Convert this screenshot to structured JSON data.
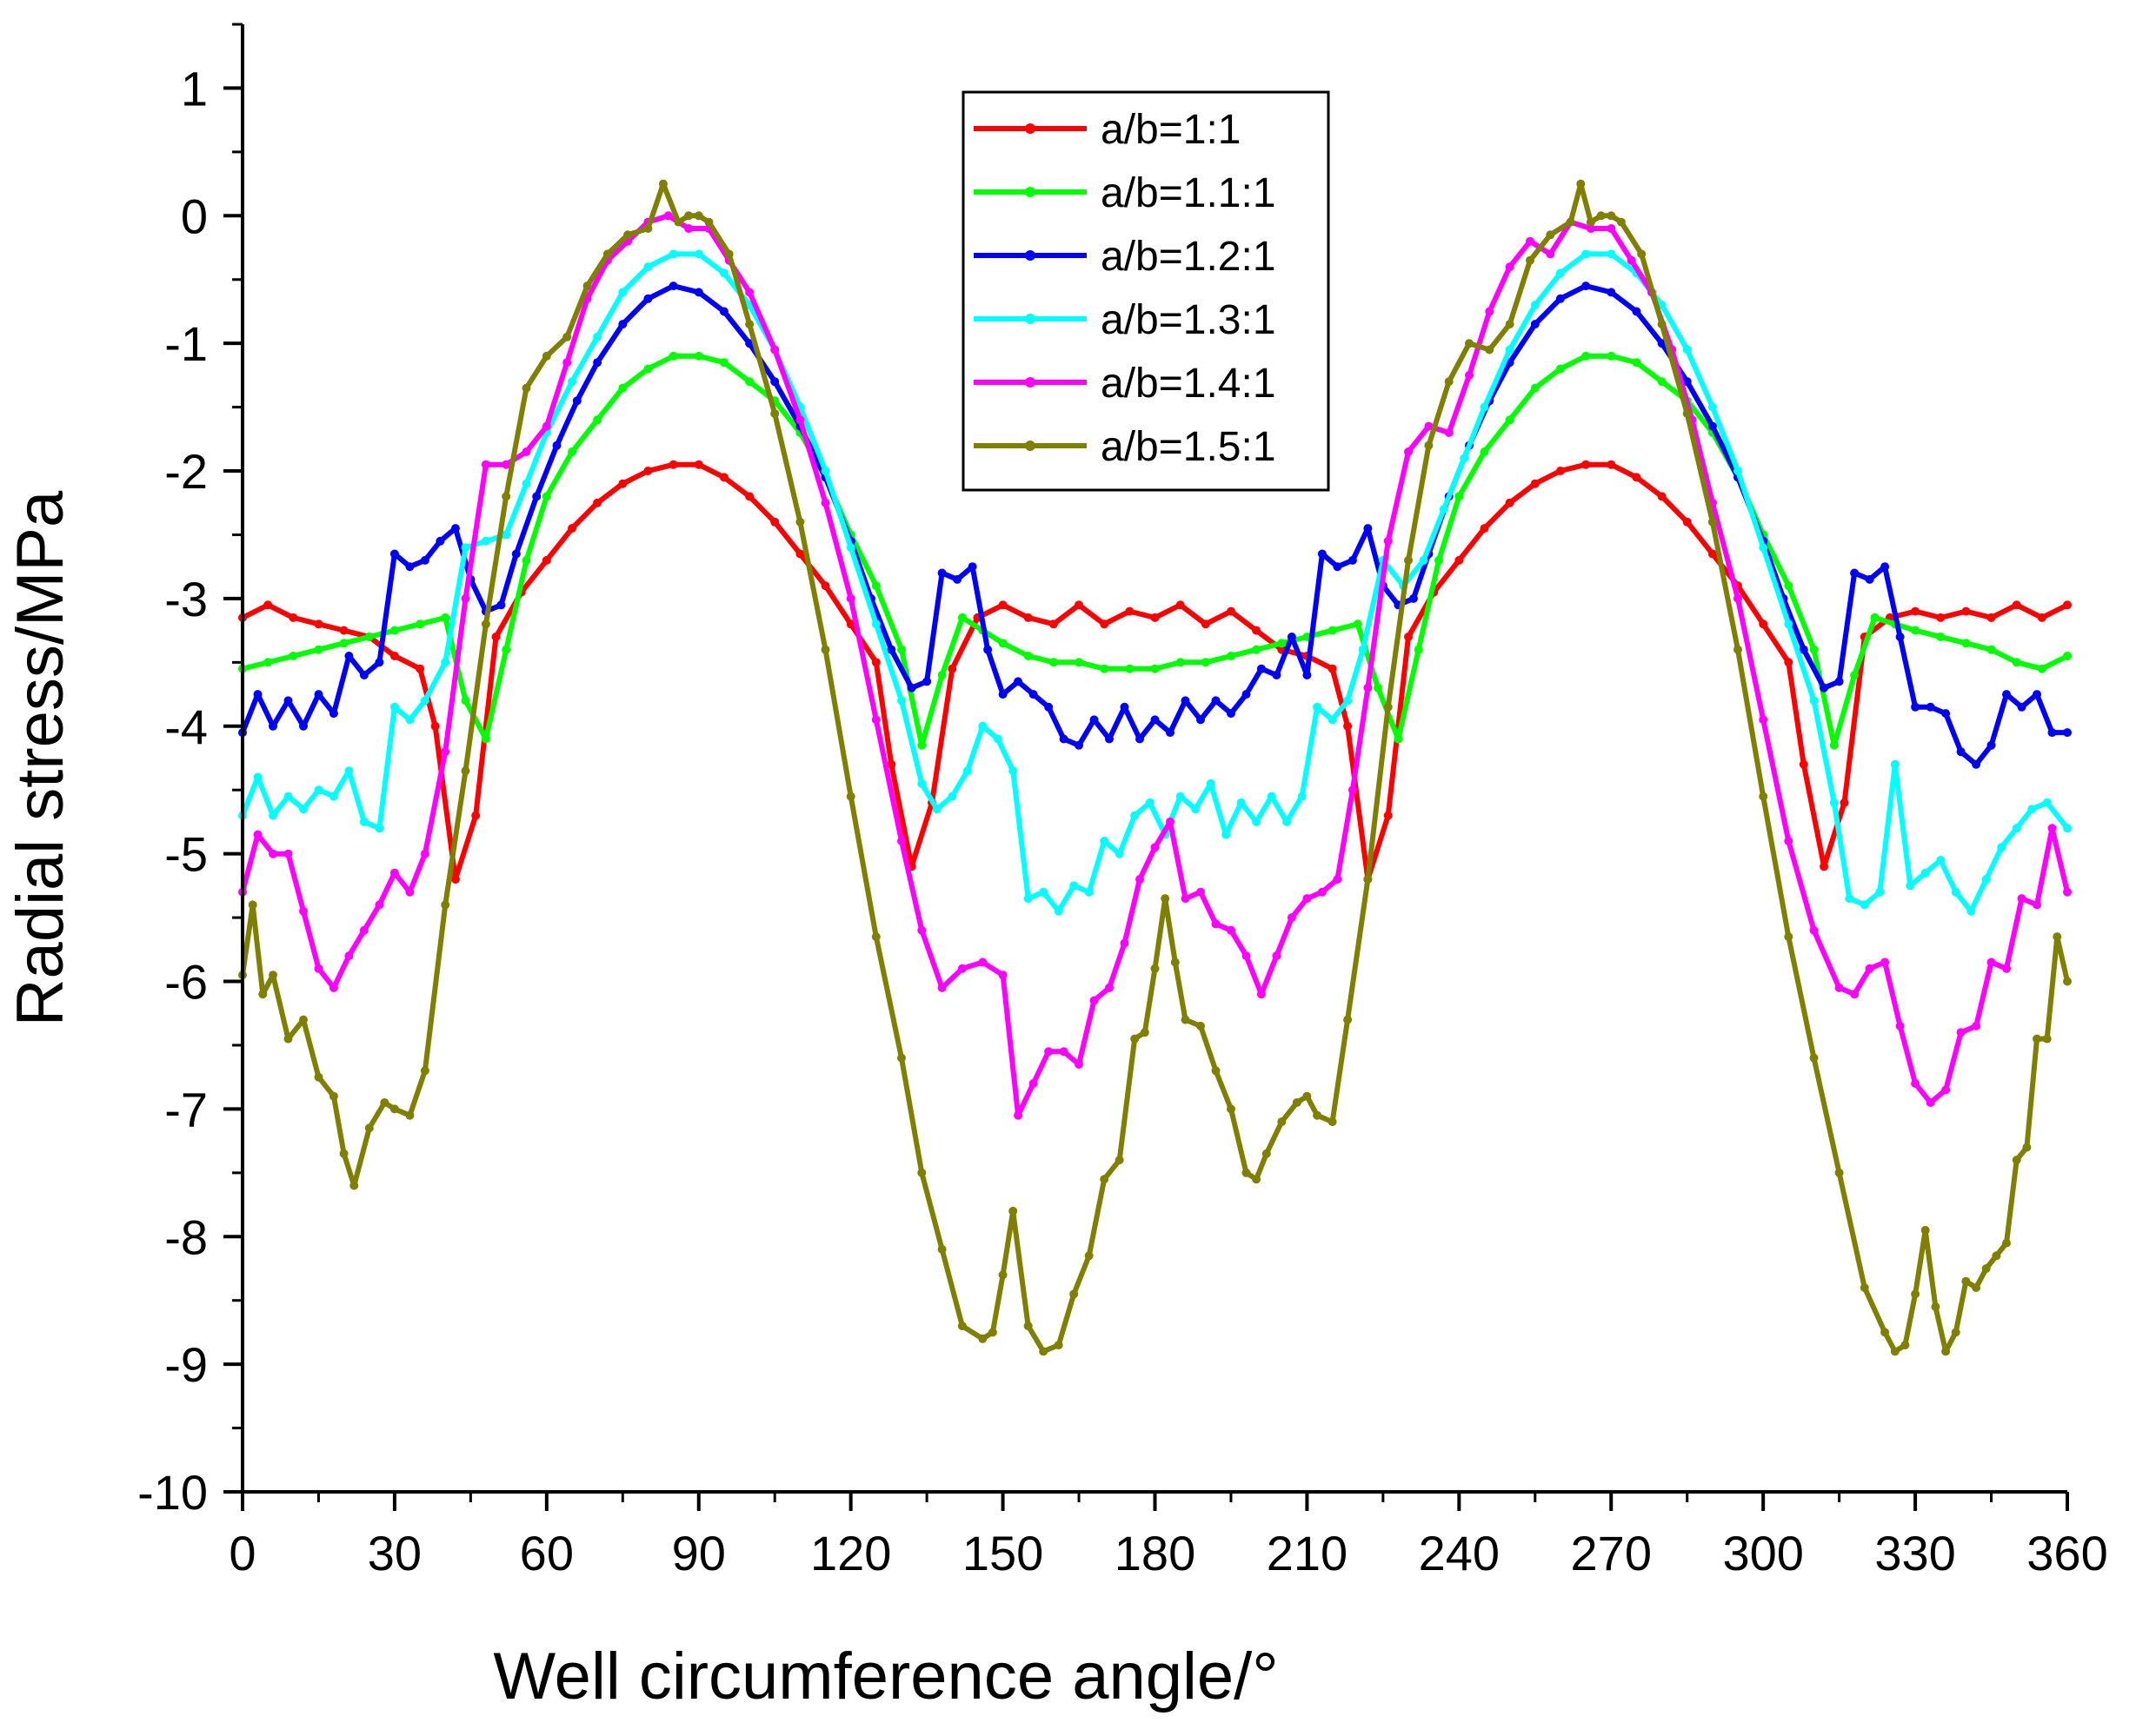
{
  "chart_data": {
    "type": "line",
    "title": "",
    "xlabel": "Well circumference angle/°",
    "ylabel": "Radial stress/MPa",
    "xlim": [
      0,
      360
    ],
    "ylim": [
      -10,
      1.5
    ],
    "xticks": [
      0,
      30,
      60,
      90,
      120,
      150,
      180,
      210,
      240,
      270,
      300,
      330,
      360
    ],
    "xtick_labels": [
      "0",
      "30",
      "60",
      "90",
      "120",
      "150",
      "180",
      "210",
      "240",
      "270",
      "300",
      "330",
      "360"
    ],
    "yticks": [
      1,
      0,
      -1,
      -2,
      -3,
      -4,
      -5,
      -6,
      -7,
      -8,
      -9,
      -10
    ],
    "ytick_labels": [
      "1",
      "0",
      "-1",
      "-2",
      "-3",
      "-4",
      "-5",
      "-6",
      "-7",
      "-8",
      "-9",
      "-10"
    ],
    "grid": false,
    "legend_position": "top-center",
    "series": [
      {
        "name": "a/b=1:1",
        "color": "#ff0000",
        "x": [
          0,
          5,
          10,
          15,
          20,
          25,
          30,
          35,
          38,
          42,
          46,
          50,
          55,
          60,
          65,
          70,
          75,
          80,
          85,
          90,
          95,
          100,
          105,
          110,
          115,
          120,
          125,
          128,
          132,
          136,
          140,
          145,
          150,
          155,
          160,
          165,
          170,
          175,
          180,
          185,
          190,
          195,
          200,
          205,
          210,
          215,
          218,
          222,
          226,
          230,
          235,
          240,
          245,
          250,
          255,
          260,
          265,
          270,
          275,
          280,
          285,
          290,
          295,
          300,
          305,
          308,
          312,
          316,
          320,
          325,
          330,
          335,
          340,
          345,
          350,
          355,
          360
        ],
        "y": [
          -3.15,
          -3.05,
          -3.15,
          -3.2,
          -3.25,
          -3.3,
          -3.45,
          -3.55,
          -4.0,
          -5.2,
          -4.7,
          -3.3,
          -2.95,
          -2.7,
          -2.45,
          -2.25,
          -2.1,
          -2.0,
          -1.95,
          -1.95,
          -2.05,
          -2.2,
          -2.4,
          -2.65,
          -2.9,
          -3.2,
          -3.5,
          -4.3,
          -5.1,
          -4.6,
          -3.55,
          -3.15,
          -3.05,
          -3.15,
          -3.2,
          -3.05,
          -3.2,
          -3.1,
          -3.15,
          -3.05,
          -3.2,
          -3.1,
          -3.25,
          -3.4,
          -3.45,
          -3.55,
          -4.0,
          -5.2,
          -4.7,
          -3.3,
          -2.95,
          -2.7,
          -2.45,
          -2.25,
          -2.1,
          -2.0,
          -1.95,
          -1.95,
          -2.05,
          -2.2,
          -2.4,
          -2.65,
          -2.9,
          -3.2,
          -3.5,
          -4.3,
          -5.1,
          -4.6,
          -3.3,
          -3.15,
          -3.1,
          -3.15,
          -3.1,
          -3.15,
          -3.05,
          -3.15,
          -3.05
        ]
      },
      {
        "name": "a/b=1.1:1",
        "color": "#00ff00",
        "x": [
          0,
          5,
          10,
          15,
          20,
          25,
          30,
          35,
          40,
          44,
          48,
          52,
          56,
          60,
          65,
          70,
          75,
          80,
          85,
          90,
          95,
          100,
          105,
          110,
          115,
          120,
          125,
          130,
          134,
          138,
          142,
          146,
          150,
          155,
          160,
          165,
          170,
          175,
          180,
          185,
          190,
          195,
          200,
          205,
          210,
          215,
          220,
          224,
          228,
          232,
          236,
          240,
          245,
          250,
          255,
          260,
          265,
          270,
          275,
          280,
          285,
          290,
          295,
          300,
          305,
          310,
          314,
          318,
          322,
          326,
          330,
          335,
          340,
          345,
          350,
          355,
          360
        ],
        "y": [
          -3.55,
          -3.5,
          -3.45,
          -3.4,
          -3.35,
          -3.3,
          -3.25,
          -3.2,
          -3.15,
          -3.8,
          -4.1,
          -3.4,
          -2.7,
          -2.2,
          -1.85,
          -1.6,
          -1.35,
          -1.2,
          -1.1,
          -1.1,
          -1.15,
          -1.3,
          -1.45,
          -1.7,
          -2.05,
          -2.5,
          -2.9,
          -3.4,
          -4.15,
          -3.6,
          -3.15,
          -3.25,
          -3.35,
          -3.45,
          -3.5,
          -3.5,
          -3.55,
          -3.55,
          -3.55,
          -3.5,
          -3.5,
          -3.45,
          -3.4,
          -3.35,
          -3.3,
          -3.25,
          -3.2,
          -3.7,
          -4.1,
          -3.4,
          -2.7,
          -2.2,
          -1.85,
          -1.6,
          -1.35,
          -1.2,
          -1.1,
          -1.1,
          -1.15,
          -1.3,
          -1.45,
          -1.7,
          -2.05,
          -2.5,
          -2.9,
          -3.4,
          -4.15,
          -3.6,
          -3.15,
          -3.2,
          -3.25,
          -3.3,
          -3.35,
          -3.4,
          -3.5,
          -3.55,
          -3.45
        ]
      },
      {
        "name": "a/b=1.2:1",
        "color": "#0000ff",
        "x": [
          0,
          3,
          6,
          9,
          12,
          15,
          18,
          21,
          24,
          27,
          30,
          33,
          36,
          39,
          42,
          45,
          48,
          51,
          54,
          58,
          62,
          66,
          70,
          75,
          80,
          85,
          90,
          95,
          100,
          105,
          110,
          115,
          120,
          124,
          128,
          132,
          135,
          138,
          141,
          144,
          147,
          150,
          153,
          156,
          159,
          162,
          165,
          168,
          171,
          174,
          177,
          180,
          183,
          186,
          189,
          192,
          195,
          198,
          201,
          204,
          207,
          210,
          213,
          216,
          219,
          222,
          225,
          228,
          231,
          234,
          238,
          242,
          246,
          250,
          255,
          260,
          265,
          270,
          275,
          280,
          285,
          290,
          295,
          300,
          304,
          308,
          312,
          315,
          318,
          321,
          324,
          327,
          330,
          333,
          336,
          339,
          342,
          345,
          348,
          351,
          354,
          357,
          360
        ],
        "y": [
          -4.05,
          -3.75,
          -4.0,
          -3.8,
          -4.0,
          -3.75,
          -3.9,
          -3.45,
          -3.6,
          -3.5,
          -2.65,
          -2.75,
          -2.7,
          -2.55,
          -2.45,
          -2.85,
          -3.1,
          -3.05,
          -2.65,
          -2.2,
          -1.8,
          -1.45,
          -1.15,
          -0.85,
          -0.65,
          -0.55,
          -0.6,
          -0.75,
          -1.0,
          -1.3,
          -1.65,
          -2.05,
          -2.55,
          -3.0,
          -3.4,
          -3.7,
          -3.65,
          -2.8,
          -2.85,
          -2.75,
          -3.4,
          -3.75,
          -3.65,
          -3.75,
          -3.85,
          -4.1,
          -4.15,
          -3.95,
          -4.1,
          -3.85,
          -4.1,
          -3.95,
          -4.05,
          -3.8,
          -3.95,
          -3.8,
          -3.9,
          -3.75,
          -3.55,
          -3.6,
          -3.3,
          -3.6,
          -2.65,
          -2.75,
          -2.7,
          -2.45,
          -2.9,
          -3.05,
          -3.0,
          -2.65,
          -2.2,
          -1.8,
          -1.45,
          -1.15,
          -0.85,
          -0.65,
          -0.55,
          -0.6,
          -0.75,
          -1.0,
          -1.3,
          -1.65,
          -2.05,
          -2.55,
          -3.0,
          -3.4,
          -3.7,
          -3.65,
          -2.8,
          -2.85,
          -2.75,
          -3.3,
          -3.85,
          -3.85,
          -3.9,
          -4.2,
          -4.3,
          -4.15,
          -3.75,
          -3.85,
          -3.75,
          -4.05,
          -4.05
        ]
      },
      {
        "name": "a/b=1.3:1",
        "color": "#00ffff",
        "x": [
          0,
          3,
          6,
          9,
          12,
          15,
          18,
          21,
          24,
          27,
          30,
          33,
          36,
          40,
          44,
          48,
          52,
          56,
          60,
          65,
          70,
          75,
          80,
          85,
          90,
          95,
          100,
          105,
          110,
          115,
          120,
          125,
          130,
          134,
          137,
          140,
          143,
          146,
          149,
          152,
          155,
          158,
          161,
          164,
          167,
          170,
          173,
          176,
          179,
          182,
          185,
          188,
          191,
          194,
          197,
          200,
          203,
          206,
          209,
          212,
          215,
          218,
          221,
          225,
          229,
          233,
          237,
          241,
          245,
          250,
          255,
          260,
          265,
          270,
          275,
          280,
          285,
          290,
          295,
          300,
          305,
          310,
          314,
          317,
          320,
          323,
          326,
          329,
          332,
          335,
          338,
          341,
          344,
          347,
          350,
          353,
          356,
          360
        ],
        "y": [
          -4.7,
          -4.4,
          -4.7,
          -4.55,
          -4.65,
          -4.5,
          -4.55,
          -4.35,
          -4.75,
          -4.8,
          -3.85,
          -3.95,
          -3.8,
          -3.5,
          -2.6,
          -2.55,
          -2.5,
          -2.1,
          -1.7,
          -1.3,
          -0.95,
          -0.6,
          -0.4,
          -0.3,
          -0.3,
          -0.45,
          -0.7,
          -1.05,
          -1.5,
          -2.0,
          -2.6,
          -3.2,
          -3.8,
          -4.45,
          -4.65,
          -4.55,
          -4.35,
          -4.0,
          -4.1,
          -4.35,
          -5.35,
          -5.3,
          -5.45,
          -5.25,
          -5.3,
          -4.9,
          -5.0,
          -4.7,
          -4.6,
          -4.85,
          -4.55,
          -4.65,
          -4.45,
          -4.85,
          -4.6,
          -4.75,
          -4.55,
          -4.75,
          -4.55,
          -3.85,
          -3.95,
          -3.8,
          -3.4,
          -2.7,
          -2.9,
          -2.7,
          -2.3,
          -1.9,
          -1.5,
          -1.05,
          -0.7,
          -0.45,
          -0.3,
          -0.3,
          -0.45,
          -0.7,
          -1.05,
          -1.5,
          -2.0,
          -2.6,
          -3.2,
          -3.8,
          -4.6,
          -5.35,
          -5.4,
          -5.3,
          -4.3,
          -5.25,
          -5.15,
          -5.05,
          -5.3,
          -5.45,
          -5.2,
          -4.95,
          -4.8,
          -4.65,
          -4.6,
          -4.8
        ]
      },
      {
        "name": "a/b=1.4:1",
        "color": "#ff00ff",
        "x": [
          0,
          3,
          6,
          9,
          12,
          15,
          18,
          21,
          24,
          27,
          30,
          33,
          36,
          40,
          44,
          48,
          52,
          56,
          60,
          64,
          68,
          72,
          76,
          80,
          84,
          88,
          92,
          96,
          100,
          105,
          110,
          115,
          120,
          125,
          130,
          134,
          138,
          142,
          146,
          150,
          153,
          156,
          159,
          162,
          165,
          168,
          171,
          174,
          177,
          180,
          183,
          186,
          189,
          192,
          195,
          198,
          201,
          204,
          207,
          210,
          213,
          216,
          219,
          222,
          226,
          230,
          234,
          238,
          242,
          246,
          250,
          254,
          258,
          262,
          266,
          270,
          274,
          278,
          282,
          286,
          290,
          295,
          300,
          305,
          310,
          315,
          318,
          321,
          324,
          327,
          330,
          333,
          336,
          339,
          342,
          345,
          348,
          351,
          354,
          357,
          360
        ],
        "y": [
          -5.3,
          -4.85,
          -5.0,
          -5.0,
          -5.45,
          -5.9,
          -6.05,
          -5.8,
          -5.6,
          -5.4,
          -5.15,
          -5.3,
          -5.0,
          -4.2,
          -3.0,
          -1.95,
          -1.95,
          -1.85,
          -1.65,
          -1.15,
          -0.65,
          -0.35,
          -0.2,
          -0.05,
          0.0,
          -0.1,
          -0.1,
          -0.35,
          -0.6,
          -1.05,
          -1.6,
          -2.25,
          -3.0,
          -3.95,
          -4.9,
          -5.6,
          -6.05,
          -5.9,
          -5.85,
          -5.95,
          -7.05,
          -6.8,
          -6.55,
          -6.55,
          -6.65,
          -6.15,
          -6.05,
          -5.7,
          -5.2,
          -4.95,
          -4.75,
          -5.35,
          -5.3,
          -5.55,
          -5.6,
          -5.8,
          -6.1,
          -5.8,
          -5.5,
          -5.35,
          -5.3,
          -5.2,
          -4.5,
          -3.7,
          -2.55,
          -1.85,
          -1.65,
          -1.7,
          -1.25,
          -0.75,
          -0.4,
          -0.2,
          -0.3,
          -0.05,
          -0.1,
          -0.1,
          -0.35,
          -0.6,
          -1.05,
          -1.6,
          -2.25,
          -3.0,
          -3.95,
          -4.9,
          -5.6,
          -6.05,
          -6.1,
          -5.9,
          -5.85,
          -6.35,
          -6.8,
          -6.95,
          -6.85,
          -6.4,
          -6.35,
          -5.85,
          -5.9,
          -5.35,
          -5.4,
          -4.8,
          -5.3
        ]
      },
      {
        "name": "a/b=1.5:1",
        "color": "#808000",
        "x": [
          0,
          2,
          4,
          6,
          9,
          12,
          15,
          18,
          20,
          22,
          25,
          28,
          30,
          33,
          36,
          40,
          44,
          48,
          52,
          56,
          60,
          64,
          68,
          72,
          76,
          80,
          83,
          86,
          88,
          90,
          92,
          96,
          100,
          105,
          110,
          115,
          120,
          125,
          130,
          134,
          138,
          142,
          146,
          148,
          150,
          152,
          155,
          158,
          161,
          164,
          167,
          170,
          173,
          176,
          178,
          180,
          182,
          184,
          186,
          189,
          192,
          195,
          198,
          200,
          202,
          205,
          208,
          210,
          212,
          215,
          218,
          222,
          226,
          230,
          234,
          238,
          242,
          246,
          250,
          254,
          258,
          262,
          264,
          266,
          268,
          270,
          272,
          276,
          280,
          285,
          290,
          295,
          300,
          305,
          310,
          315,
          320,
          324,
          326,
          328,
          330,
          332,
          334,
          336,
          338,
          340,
          342,
          344,
          346,
          348,
          350,
          352,
          354,
          356,
          358,
          360
        ],
        "y": [
          -5.95,
          -5.4,
          -6.1,
          -5.95,
          -6.45,
          -6.3,
          -6.75,
          -6.9,
          -7.35,
          -7.6,
          -7.15,
          -6.95,
          -7.0,
          -7.05,
          -6.7,
          -5.4,
          -4.35,
          -3.2,
          -2.2,
          -1.35,
          -1.1,
          -0.95,
          -0.55,
          -0.3,
          -0.15,
          -0.1,
          0.25,
          -0.05,
          0.0,
          0.0,
          -0.05,
          -0.3,
          -0.85,
          -1.55,
          -2.4,
          -3.4,
          -4.55,
          -5.65,
          -6.6,
          -7.5,
          -8.1,
          -8.7,
          -8.8,
          -8.75,
          -8.3,
          -7.8,
          -8.7,
          -8.9,
          -8.85,
          -8.45,
          -8.15,
          -7.55,
          -7.4,
          -6.45,
          -6.4,
          -5.9,
          -5.35,
          -5.85,
          -6.3,
          -6.35,
          -6.7,
          -7.0,
          -7.5,
          -7.55,
          -7.35,
          -7.1,
          -6.95,
          -6.9,
          -7.05,
          -7.1,
          -6.3,
          -5.2,
          -3.85,
          -2.7,
          -1.8,
          -1.3,
          -1.0,
          -1.05,
          -0.85,
          -0.35,
          -0.15,
          -0.05,
          0.25,
          -0.05,
          0.0,
          0.0,
          -0.05,
          -0.3,
          -0.85,
          -1.55,
          -2.4,
          -3.4,
          -4.55,
          -5.65,
          -6.6,
          -7.5,
          -8.4,
          -8.75,
          -8.9,
          -8.85,
          -8.45,
          -7.95,
          -8.55,
          -8.9,
          -8.75,
          -8.35,
          -8.4,
          -8.25,
          -8.15,
          -8.05,
          -7.4,
          -7.3,
          -6.45,
          -6.45,
          -5.65,
          -6.0
        ]
      }
    ]
  }
}
